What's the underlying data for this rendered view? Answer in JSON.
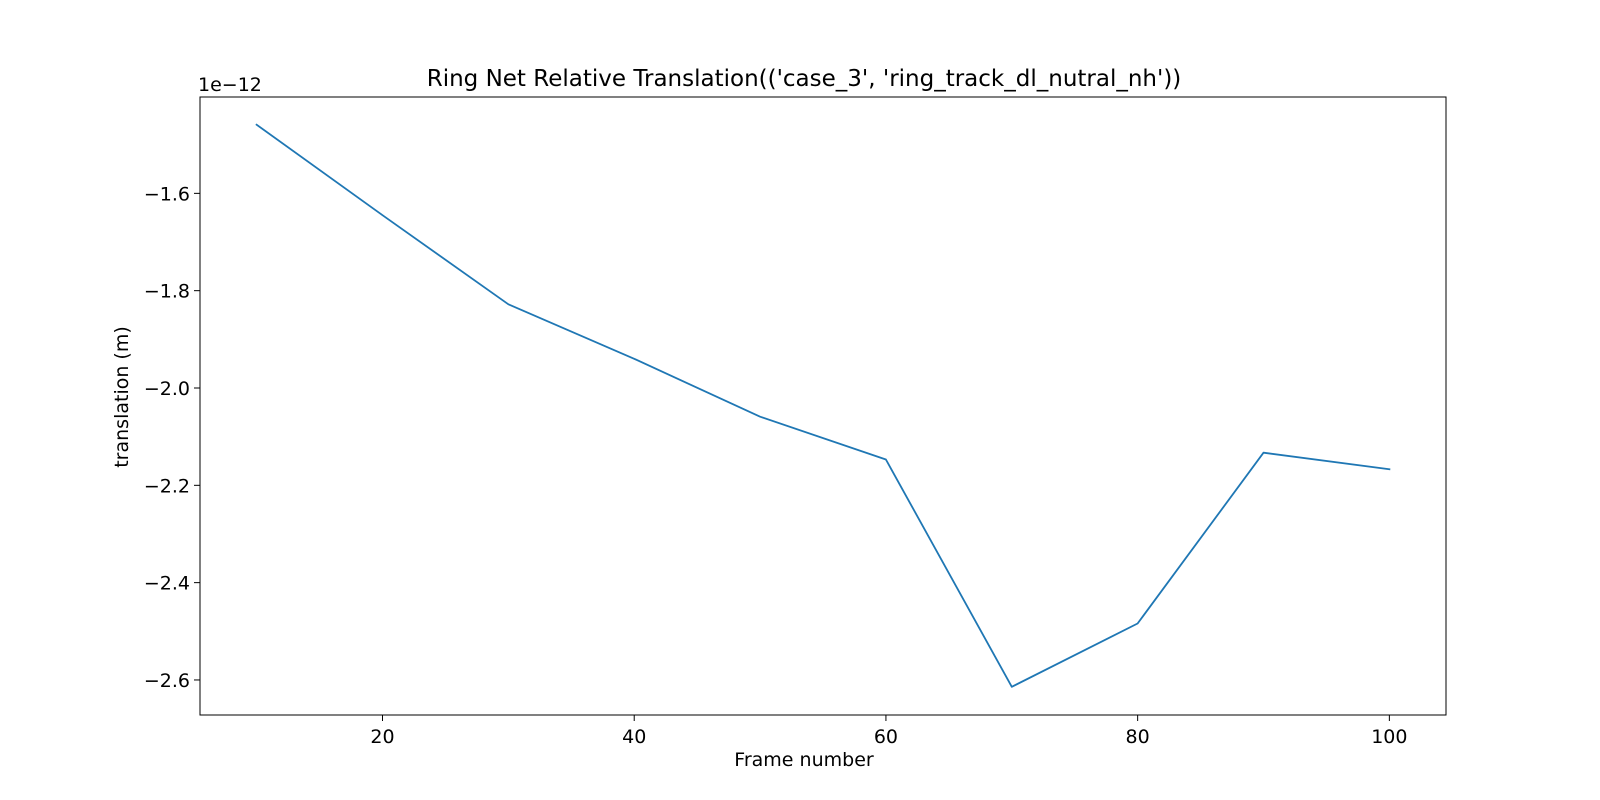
{
  "chart_data": {
    "type": "line",
    "title": "Ring Net Relative Translation(('case_3', 'ring_track_dl_nutral_nh'))",
    "xlabel": "Frame number",
    "ylabel": "translation (m)",
    "y_offset_label": "1e−12",
    "xlim": [
      5.5,
      104.5
    ],
    "ylim": [
      -2.672,
      -1.402
    ],
    "x_ticks": [
      20,
      40,
      60,
      80,
      100
    ],
    "x_tick_labels": [
      "20",
      "40",
      "60",
      "80",
      "100"
    ],
    "y_ticks": [
      -1.6,
      -1.8,
      -2.0,
      -2.2,
      -2.4,
      -2.6
    ],
    "y_tick_labels": [
      "−1.6",
      "−1.8",
      "−2.0",
      "−2.2",
      "−2.4",
      "−2.6"
    ],
    "grid": false,
    "series": [
      {
        "color": "#1f77b4",
        "x": [
          10,
          20,
          30,
          40,
          50,
          60,
          70,
          80,
          90,
          100
        ],
        "y": [
          -1.459,
          -1.645,
          -1.828,
          -1.94,
          -2.059,
          -2.147,
          -2.614,
          -2.484,
          -2.133,
          -2.167
        ]
      }
    ]
  }
}
